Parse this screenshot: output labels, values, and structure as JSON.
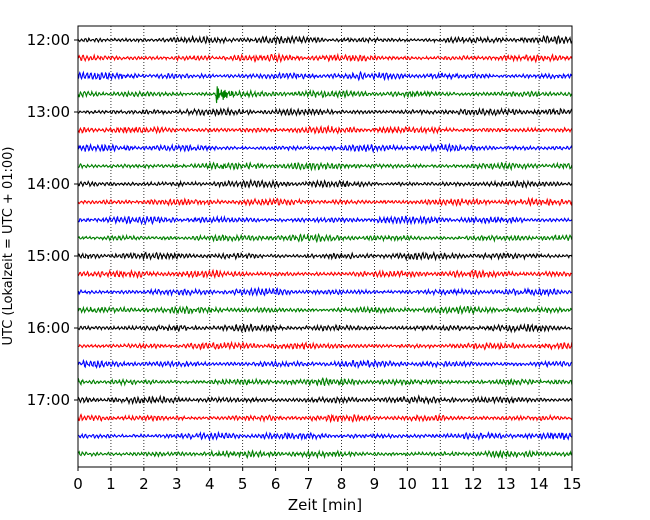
{
  "chart_data": {
    "type": "line",
    "xlabel": "Zeit  [min]",
    "ylabel": "UTC (Lokalzeit = UTC + 01:00)",
    "xlim": [
      0,
      15
    ],
    "x_ticks": [
      0,
      1,
      2,
      3,
      4,
      5,
      6,
      7,
      8,
      9,
      10,
      11,
      12,
      13,
      14,
      15
    ],
    "x_tick_labels": [
      "0",
      "1",
      "2",
      "3",
      "4",
      "5",
      "6",
      "7",
      "8",
      "9",
      "10",
      "11",
      "12",
      "13",
      "14",
      "15"
    ],
    "y_tick_labels": [
      "12:00",
      "13:00",
      "14:00",
      "15:00",
      "16:00",
      "17:00"
    ],
    "grid": "vertical dotted",
    "trace_start_times": [
      "12:00",
      "12:15",
      "12:30",
      "12:45",
      "13:00",
      "13:15",
      "13:30",
      "13:45",
      "14:00",
      "14:15",
      "14:30",
      "14:45",
      "15:00",
      "15:15",
      "15:30",
      "15:45",
      "16:00",
      "16:15",
      "16:30",
      "16:45",
      "17:00",
      "17:15",
      "17:30",
      "17:45"
    ],
    "trace_colors": [
      "#000000",
      "#ff0000",
      "#0000ff",
      "#008000"
    ],
    "trace_minutes_per_line": 15,
    "events": [
      {
        "trace_start": "12:45",
        "minute": 4.2,
        "description": "spike"
      }
    ]
  }
}
